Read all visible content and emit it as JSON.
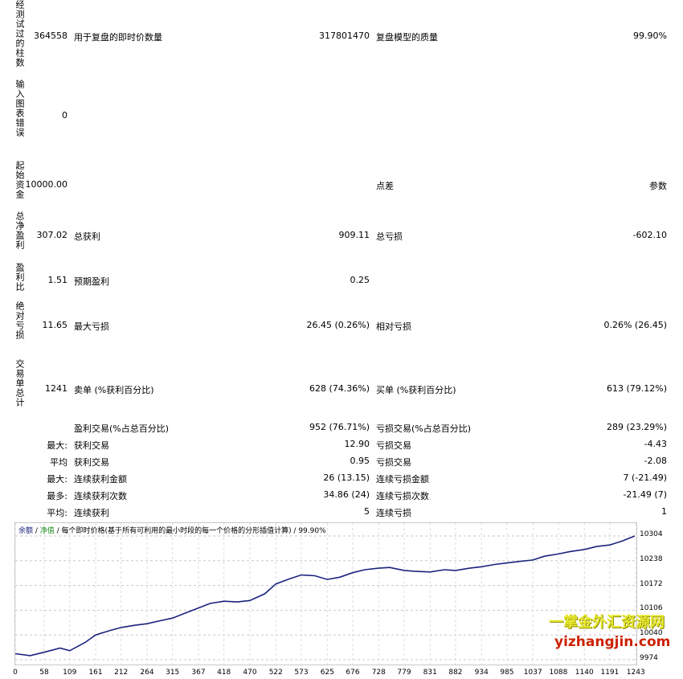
{
  "left_labels": [
    "经测试过的柱数",
    "输入图表错误",
    "起始资金",
    "总净盈利",
    "盈利比",
    "绝对亏损",
    "交易单总计"
  ],
  "rows": {
    "r1": {
      "v1": "364558",
      "l2": "用于复盘的即时价数量",
      "v2": "317801470",
      "l3": "复盘模型的质量",
      "v3": "99.90%"
    },
    "r2": {
      "v1": "0"
    },
    "r3": {
      "v1": "10000.00",
      "l3": "点差",
      "v3": "参数"
    },
    "r4": {
      "v1": "307.02",
      "l2": "总获利",
      "v2": "909.11",
      "l3": "总亏损",
      "v3": "-602.10"
    },
    "r5": {
      "v1": "1.51",
      "l2": "预期盈利",
      "v2": "0.25"
    },
    "r6": {
      "v1": "11.65",
      "l2": "最大亏损",
      "v2": "26.45 (0.26%)",
      "l3": "相对亏损",
      "v3": "0.26% (26.45)"
    },
    "r7": {
      "v1": "1241",
      "l2": "卖单 (%获利百分比)",
      "v2": "628 (74.36%)",
      "l3": "买单 (%获利百分比)",
      "v3": "613 (79.12%)"
    },
    "r8": {
      "l2": "盈利交易(%占总百分比)",
      "v2": "952 (76.71%)",
      "l3": "亏损交易(%占总百分比)",
      "v3": "289 (23.29%)"
    },
    "r9": {
      "l1": "最大:",
      "l2": "获利交易",
      "v2": "12.90",
      "l3": "亏损交易",
      "v3": "-4.43"
    },
    "r10": {
      "l1": "平均",
      "l2": "获利交易",
      "v2": "0.95",
      "l3": "亏损交易",
      "v3": "-2.08"
    },
    "r11": {
      "l1": "最大:",
      "l2": "连续获利金额",
      "v2": "26 (13.15)",
      "l3": "连续亏损金额",
      "v3": "7 (-21.49)"
    },
    "r12": {
      "l1": "最多:",
      "l2": "连续获利次数",
      "v2": "34.86 (24)",
      "l3": "连续亏损次数",
      "v3": "-21.49 (7)"
    },
    "r13": {
      "l1": "平均:",
      "l2": "连续获利",
      "v2": "5",
      "l3": "连续亏损",
      "v3": "1"
    }
  },
  "chart_legend": {
    "balance": "余额",
    "sep1": " / ",
    "equity": "净值",
    "rest": " / 每个即时价格(基于所有可利用的最小时段的每一个价格的分形插值计算) / 99.90%"
  },
  "watermark": {
    "line1": "一掌金外汇资源网",
    "line2": "yizhangjin.com"
  },
  "chart_data": {
    "type": "line",
    "series": [
      {
        "name": "余额",
        "color": "#1a237e"
      }
    ],
    "x_ticks": [
      "0",
      "58",
      "109",
      "161",
      "212",
      "264",
      "315",
      "367",
      "418",
      "470",
      "522",
      "573",
      "625",
      "676",
      "728",
      "779",
      "831",
      "882",
      "934",
      "985",
      "1037",
      "1088",
      "1140",
      "1191",
      "1243"
    ],
    "y_ticks": [
      "10304",
      "10238",
      "10172",
      "10106",
      "10040",
      "9974"
    ],
    "ylim": [
      9974,
      10304
    ],
    "xlim": [
      0,
      1241
    ],
    "x": [
      0,
      30,
      58,
      90,
      109,
      140,
      161,
      190,
      212,
      240,
      264,
      290,
      315,
      340,
      367,
      390,
      418,
      445,
      470,
      500,
      522,
      550,
      573,
      600,
      625,
      650,
      676,
      700,
      728,
      750,
      779,
      800,
      831,
      860,
      882,
      910,
      934,
      960,
      985,
      1010,
      1037,
      1060,
      1088,
      1110,
      1140,
      1165,
      1191,
      1215,
      1241
    ],
    "values": [
      9990,
      9985,
      9994,
      10005,
      9998,
      10020,
      10040,
      10052,
      10060,
      10066,
      10070,
      10078,
      10085,
      10098,
      10112,
      10124,
      10130,
      10128,
      10132,
      10150,
      10176,
      10190,
      10200,
      10198,
      10188,
      10194,
      10206,
      10214,
      10218,
      10220,
      10212,
      10210,
      10208,
      10214,
      10212,
      10218,
      10222,
      10228,
      10232,
      10236,
      10240,
      10250,
      10256,
      10262,
      10268,
      10276,
      10280,
      10290,
      10304
    ]
  }
}
